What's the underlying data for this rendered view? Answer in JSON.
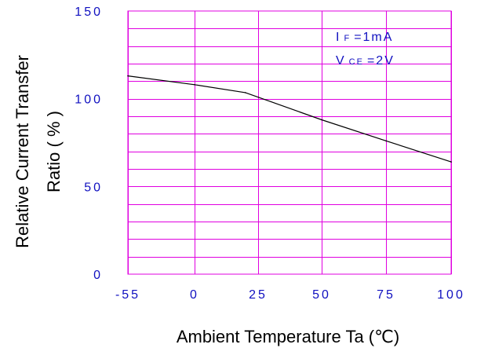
{
  "chart_data": {
    "type": "line",
    "xlabel": "Ambient Temperature Ta (℃)",
    "ylabel_lines": [
      "Relative Current Transfer",
      "Ratio ( % )"
    ],
    "xlim": [
      -55,
      100
    ],
    "ylim": [
      0,
      150
    ],
    "x_ticks": [
      -55,
      0,
      25,
      50,
      75,
      100
    ],
    "x_tick_labels": [
      "-55",
      "0",
      "25",
      "50",
      "75",
      "100"
    ],
    "y_ticks": [
      0,
      50,
      100,
      150
    ],
    "y_tick_labels": [
      "0",
      "50",
      "100",
      "150"
    ],
    "grid": true,
    "series": [
      {
        "x": [
          -55,
          0,
          20,
          50,
          75,
          100
        ],
        "y": [
          113,
          108,
          103.5,
          88,
          76,
          64
        ]
      }
    ],
    "annotations": [
      {
        "base": "I",
        "sub": "F",
        "rest": "=1mA"
      },
      {
        "base": "V",
        "sub": "CE",
        "rest": "=2V"
      }
    ],
    "colors": {
      "grid": "#e000e0",
      "tick_labels": "#1010c0",
      "curve": "#000000",
      "annotation": "#1010c0"
    }
  }
}
